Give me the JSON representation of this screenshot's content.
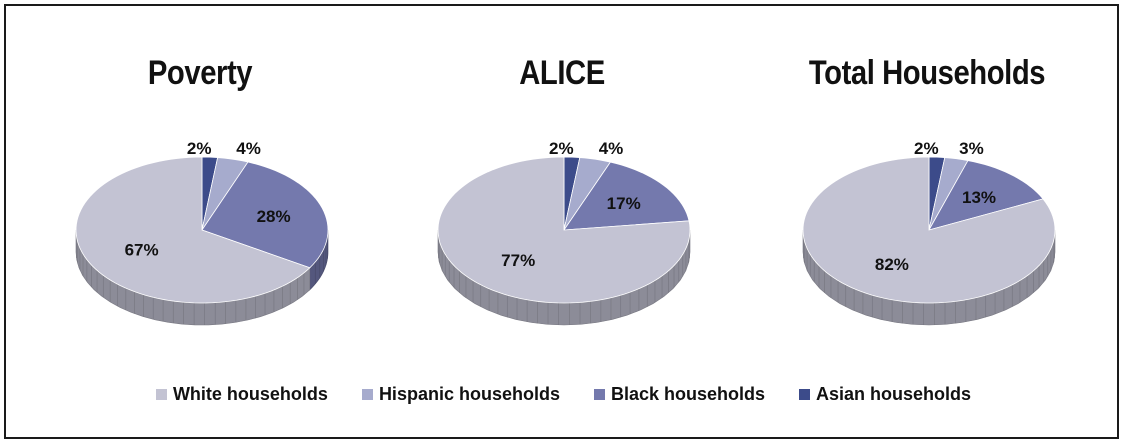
{
  "chart_data": [
    {
      "type": "pie",
      "title": "Poverty",
      "categories": [
        "White households",
        "Hispanic households",
        "Black households",
        "Asian households"
      ],
      "values": [
        67,
        4,
        28,
        2
      ],
      "labels": [
        "67%",
        "4%",
        "28%",
        "2%"
      ]
    },
    {
      "type": "pie",
      "title": "ALICE",
      "categories": [
        "White households",
        "Hispanic households",
        "Black households",
        "Asian households"
      ],
      "values": [
        77,
        4,
        17,
        2
      ],
      "labels": [
        "77%",
        "4%",
        "17%",
        "2%"
      ]
    },
    {
      "type": "pie",
      "title": "Total Households",
      "categories": [
        "White households",
        "Hispanic households",
        "Black households",
        "Asian households"
      ],
      "values": [
        82,
        3,
        13,
        2
      ],
      "labels": [
        "82%",
        "3%",
        "13%",
        "2%"
      ]
    }
  ],
  "legend": {
    "placement": "bottom",
    "items": [
      {
        "label": "White households",
        "color": "#c3c3d3"
      },
      {
        "label": "Hispanic households",
        "color": "#a6abcd"
      },
      {
        "label": "Black households",
        "color": "#7479ad"
      },
      {
        "label": "Asian households",
        "color": "#3c4b8a"
      }
    ]
  }
}
